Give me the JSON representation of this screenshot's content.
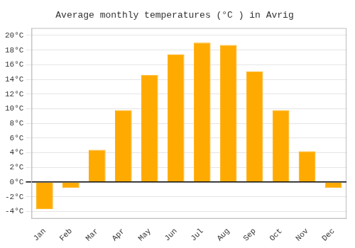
{
  "chart_data": {
    "type": "bar",
    "title": "Average monthly temperatures (°C ) in Avrig",
    "categories": [
      "Jan",
      "Feb",
      "Mar",
      "Apr",
      "May",
      "Jun",
      "Jul",
      "Aug",
      "Sep",
      "Oct",
      "Nov",
      "Dec"
    ],
    "values": [
      -3.7,
      -0.8,
      4.4,
      9.8,
      14.6,
      17.4,
      19.0,
      18.7,
      15.1,
      9.8,
      4.2,
      -0.8
    ],
    "color": "#FFAA00",
    "ylim": [
      -5,
      21
    ],
    "yticks": [
      {
        "value": -4,
        "label": "-4°C"
      },
      {
        "value": -2,
        "label": "-2°C"
      },
      {
        "value": 0,
        "label": "0°C"
      },
      {
        "value": 2,
        "label": "2°C"
      },
      {
        "value": 4,
        "label": "4°C"
      },
      {
        "value": 6,
        "label": "6°C"
      },
      {
        "value": 8,
        "label": "8°C"
      },
      {
        "value": 10,
        "label": "10°C"
      },
      {
        "value": 12,
        "label": "12°C"
      },
      {
        "value": 14,
        "label": "14°C"
      },
      {
        "value": 16,
        "label": "16°C"
      },
      {
        "value": 18,
        "label": "18°C"
      },
      {
        "value": 20,
        "label": "20°C"
      }
    ],
    "grid": true
  }
}
